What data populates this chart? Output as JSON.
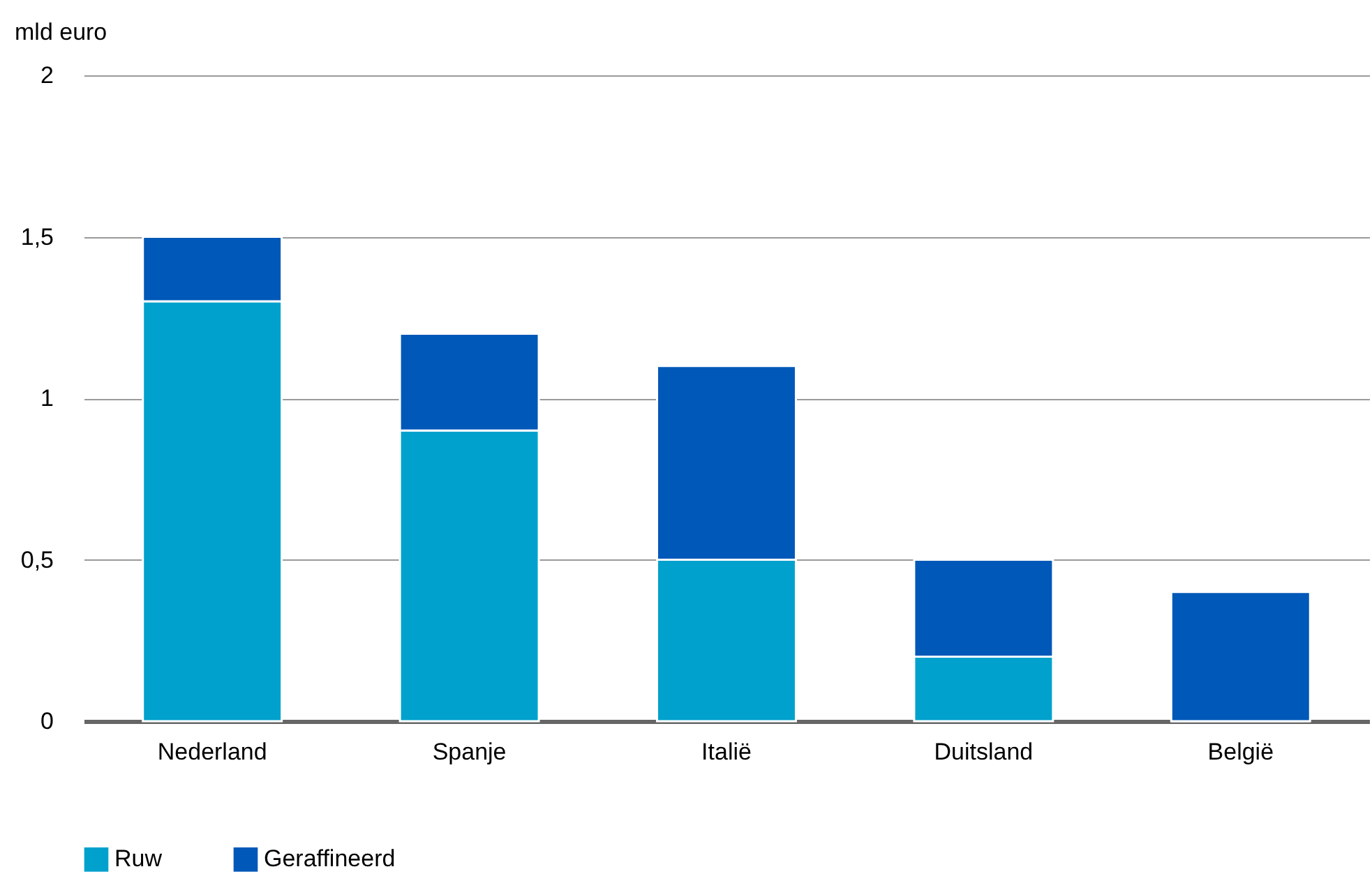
{
  "chart_data": {
    "type": "bar",
    "stacked": true,
    "ylabel": "mld euro",
    "categories": [
      "Nederland",
      "Spanje",
      "Italië",
      "Duitsland",
      "België"
    ],
    "series": [
      {
        "name": "Ruw",
        "color": "#00a1cd",
        "values": [
          1.3,
          0.9,
          0.5,
          0.2,
          0
        ]
      },
      {
        "name": "Geraffineerd",
        "color": "#0058b8",
        "values": [
          0.2,
          0.3,
          0.6,
          0.3,
          0.4
        ]
      }
    ],
    "ylim": [
      0,
      2
    ],
    "yticks": [
      0,
      {
        "value": 0.5,
        "label": "0,5"
      },
      1,
      {
        "value": 1.5,
        "label": "1,5"
      },
      2
    ],
    "grid": "y",
    "legend": "bottom"
  }
}
